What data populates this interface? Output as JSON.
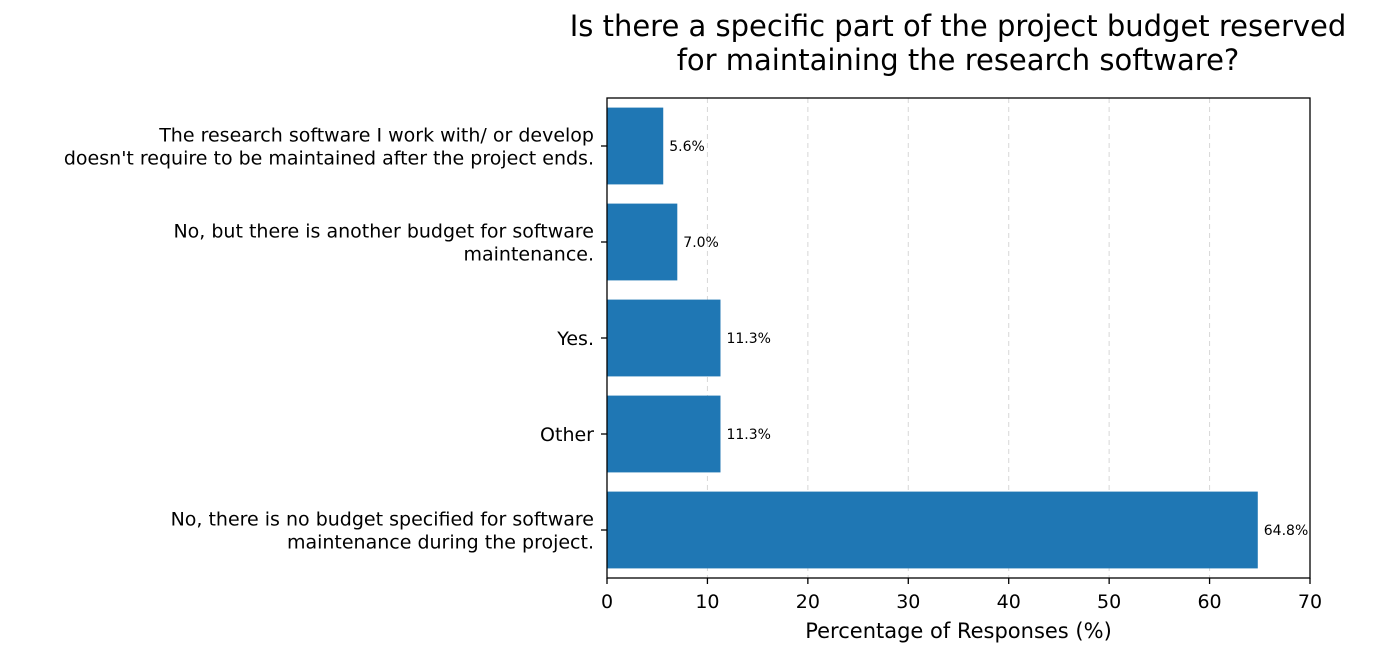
{
  "chart_data": {
    "type": "bar",
    "orientation": "horizontal",
    "title_lines": [
      "Is there a specific part of the project budget reserved",
      "for maintaining the research software?"
    ],
    "xlabel": "Percentage of Responses (%)",
    "ylabel": "",
    "xlim": [
      0,
      70
    ],
    "x_ticks": [
      0,
      10,
      20,
      30,
      40,
      50,
      60,
      70
    ],
    "grid": "vertical-dashed",
    "bar_color": "#1f77b4",
    "categories": [
      [
        "The research software I work with/ or develop",
        "doesn't require to be maintained after the project ends."
      ],
      [
        "No, but there is another budget for software",
        "maintenance."
      ],
      [
        "Yes."
      ],
      [
        "Other"
      ],
      [
        "No, there is no budget specified for software",
        "maintenance during the project."
      ]
    ],
    "values": [
      5.6,
      7.0,
      11.3,
      11.3,
      64.8
    ],
    "value_labels": [
      "5.6%",
      "7.0%",
      "11.3%",
      "11.3%",
      "64.8%"
    ]
  }
}
